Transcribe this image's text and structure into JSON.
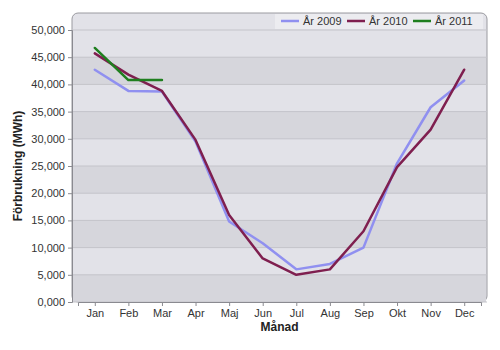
{
  "chart_data": {
    "type": "line",
    "x_label": "Månad",
    "y_label": "Förbrukning (MWh)",
    "categories": [
      "Jan",
      "Feb",
      "Mar",
      "Apr",
      "Maj",
      "Jun",
      "Jul",
      "Aug",
      "Sep",
      "Okt",
      "Nov",
      "Dec"
    ],
    "series": [
      {
        "name": "År 2009",
        "color": "#9090f0",
        "values": [
          42.7,
          38.8,
          38.7,
          29.5,
          14.8,
          10.8,
          6.0,
          7.0,
          10.0,
          25.5,
          35.8,
          40.7
        ]
      },
      {
        "name": "År 2010",
        "color": "#7f1f4f",
        "values": [
          45.7,
          41.8,
          38.8,
          29.8,
          16.0,
          8.0,
          5.0,
          6.0,
          13.0,
          24.8,
          31.7,
          42.7
        ]
      },
      {
        "name": "År 2011",
        "color": "#1f7f1f",
        "values": [
          46.7,
          40.8,
          40.8,
          null,
          null,
          null,
          null,
          null,
          null,
          null,
          null,
          null
        ]
      }
    ],
    "ylim": [
      0,
      50
    ],
    "yticks": [
      {
        "value": 0,
        "label": "0,000"
      },
      {
        "value": 5,
        "label": "5,000"
      },
      {
        "value": 10,
        "label": "10,000"
      },
      {
        "value": 15,
        "label": "15,000"
      },
      {
        "value": 20,
        "label": "20,000"
      },
      {
        "value": 25,
        "label": "25,000"
      },
      {
        "value": 30,
        "label": "30,000"
      },
      {
        "value": 35,
        "label": "35,000"
      },
      {
        "value": 40,
        "label": "40,000"
      },
      {
        "value": 45,
        "label": "45,000"
      },
      {
        "value": 50,
        "label": "50,000"
      }
    ],
    "grid": true,
    "legend": "top-right"
  }
}
